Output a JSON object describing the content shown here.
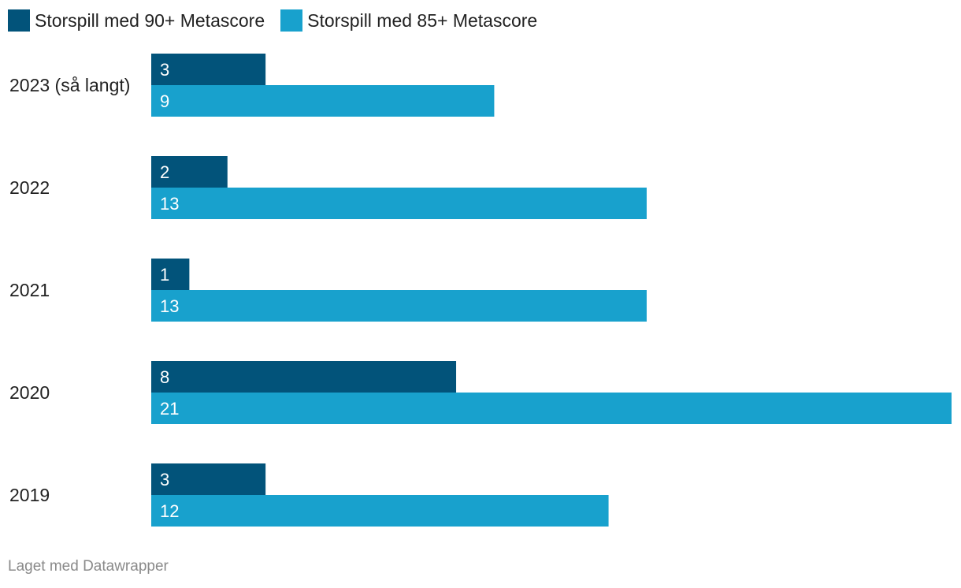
{
  "chart_data": {
    "type": "bar",
    "orientation": "horizontal",
    "categories": [
      "2023 (så langt)",
      "2022",
      "2021",
      "2020",
      "2019"
    ],
    "series": [
      {
        "name": "Storspill med 90+ Metascore",
        "color": "#02537a",
        "values": [
          3,
          2,
          1,
          8,
          3
        ]
      },
      {
        "name": "Storspill med 85+ Metascore",
        "color": "#18a1cd",
        "values": [
          9,
          13,
          13,
          21,
          12
        ]
      }
    ],
    "xlim": [
      0,
      21
    ],
    "grid": false,
    "legend": "top-left",
    "data_labels": "inside-start"
  },
  "credit": "Laget med Datawrapper"
}
